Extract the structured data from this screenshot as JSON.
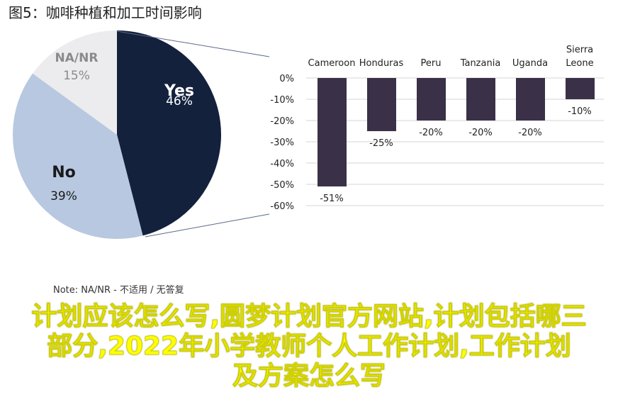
{
  "title": "图5：咖啡种植和加工时间影响",
  "note": "Note: NA/NR - 不适用 / 无答复",
  "overlay": {
    "lines": [
      "计划应该怎么写,圆梦计划官方网站,计划包括哪三",
      "部分,2022年小学教师个人工作计划,工作计划",
      "及方案怎么写"
    ]
  },
  "chart_data": [
    {
      "type": "pie",
      "slices": [
        {
          "label": "Yes",
          "value": 46,
          "display": "46%",
          "color": "#14213d"
        },
        {
          "label": "No",
          "value": 39,
          "display": "39%",
          "color": "#b7c8e0"
        },
        {
          "label": "NA/NR",
          "value": 15,
          "display": "15%",
          "color": "#ececee"
        }
      ]
    },
    {
      "type": "bar",
      "categories": [
        "Cameroon",
        "Honduras",
        "Peru",
        "Tanzania",
        "Uganda",
        "Sierra Leone"
      ],
      "values": [
        -51,
        -25,
        -20,
        -20,
        -20,
        -10
      ],
      "data_labels": [
        "-51%",
        "-25%",
        "-20%",
        "-20%",
        "-20%",
        "-10%"
      ],
      "ylim": [
        -60,
        0
      ],
      "yticks": [
        "0%",
        "-10%",
        "-20%",
        "-30%",
        "-40%",
        "-50%",
        "-60%"
      ],
      "grid": true,
      "color": "#3a3148"
    }
  ]
}
